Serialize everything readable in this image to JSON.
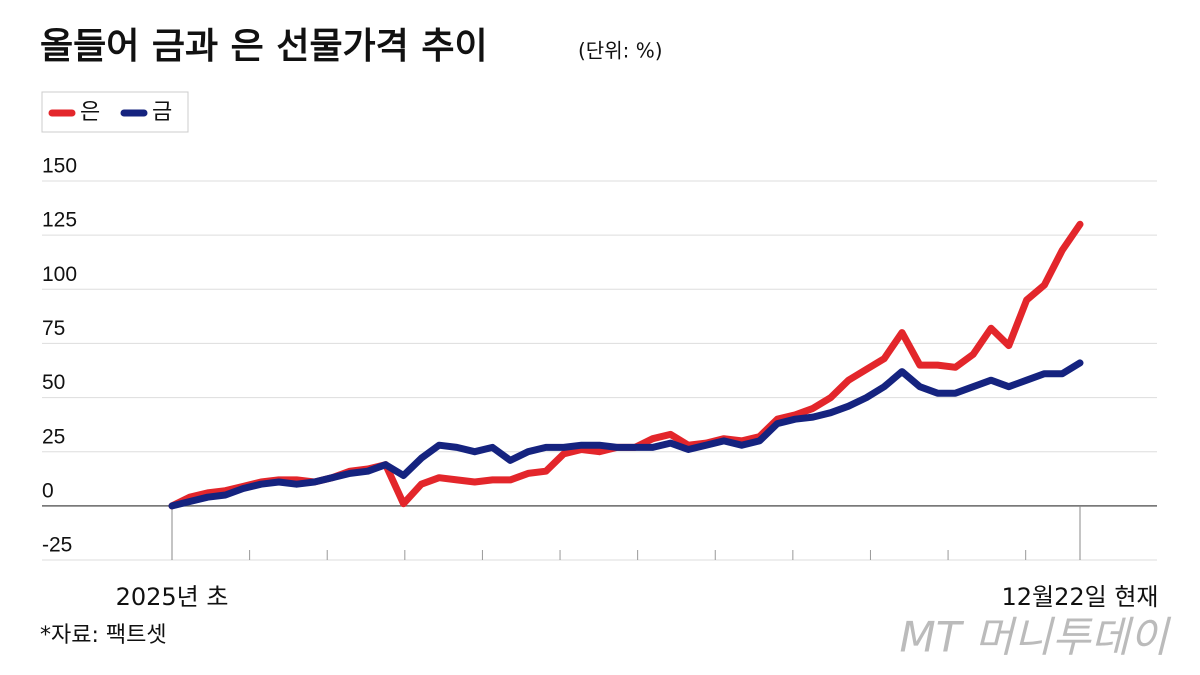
{
  "chart_data": {
    "type": "line",
    "title": "올들어 금과 은 선물가격 추이",
    "subtitle": "(단위: %)",
    "source": "*자료: 팩트셋",
    "watermark": "MT 머니투데이",
    "categories": [
      "2025년 초",
      null,
      null,
      null,
      null,
      null,
      null,
      null,
      null,
      null,
      null,
      null,
      null,
      null,
      null,
      null,
      null,
      null,
      null,
      null,
      null,
      null,
      null,
      null,
      null,
      null,
      null,
      null,
      null,
      null,
      null,
      null,
      null,
      null,
      null,
      null,
      null,
      null,
      null,
      null,
      null,
      null,
      null,
      null,
      null,
      null,
      null,
      null,
      null,
      null,
      null,
      "12월22일 현재"
    ],
    "series": [
      {
        "name": "은",
        "color": "#e3262b",
        "values": [
          0,
          4,
          6,
          7,
          9,
          11,
          12,
          12,
          11,
          13,
          16,
          17,
          19,
          1,
          10,
          13,
          12,
          11,
          12,
          12,
          15,
          16,
          24,
          26,
          25,
          27,
          27,
          31,
          33,
          28,
          29,
          31,
          30,
          32,
          40,
          42,
          45,
          50,
          58,
          63,
          68,
          80,
          65,
          65,
          64,
          70,
          82,
          74,
          95,
          102,
          118,
          130
        ]
      },
      {
        "name": "금",
        "color": "#15237f",
        "values": [
          0,
          2,
          4,
          5,
          8,
          10,
          11,
          10,
          11,
          13,
          15,
          16,
          19,
          14,
          22,
          28,
          27,
          25,
          27,
          21,
          25,
          27,
          27,
          28,
          28,
          27,
          27,
          27,
          29,
          26,
          28,
          30,
          28,
          30,
          38,
          40,
          41,
          43,
          46,
          50,
          55,
          62,
          55,
          52,
          52,
          55,
          58,
          55,
          58,
          61,
          61,
          66
        ]
      }
    ],
    "ylim": [
      -25,
      150
    ],
    "yticks": [
      -25,
      0,
      25,
      50,
      75,
      100,
      125,
      150
    ],
    "grid": true,
    "legend": "top-left"
  }
}
